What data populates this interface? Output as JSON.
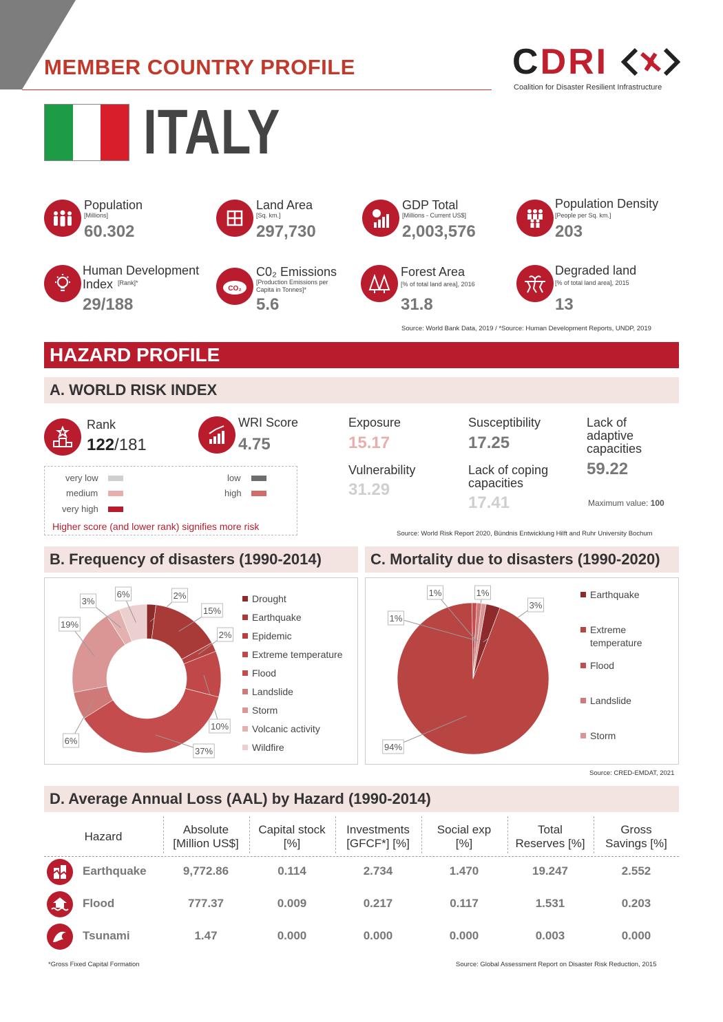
{
  "header": {
    "title": "MEMBER COUNTRY PROFILE",
    "logo_text_c": "C",
    "logo_text_dri": "DRI",
    "logo_sub": "Coalition for Disaster Resilient Infrastructure",
    "country": "ITALY"
  },
  "flag": {
    "colors": [
      "#1e9b46",
      "#ffffff",
      "#d81e2a"
    ]
  },
  "stats": [
    {
      "label": "Population",
      "sub": "[Millions]",
      "value": "60.302",
      "icon": "people-icon"
    },
    {
      "label": "Land Area",
      "sub": "[Sq. km.]",
      "value": "297,730",
      "icon": "land-icon"
    },
    {
      "label": "GDP Total",
      "sub": "[Millions - Current US$]",
      "value": "2,003,576",
      "icon": "gdp-icon"
    },
    {
      "label": "Population Density",
      "sub": "[People per Sq. km.]",
      "value": "203",
      "icon": "density-icon"
    },
    {
      "label": "Human Development Index",
      "sub": "[Rank]*",
      "value": "29/188",
      "icon": "bulb-icon"
    },
    {
      "label": "C0₂ Emissions",
      "sub": "[Production Emissions per Capita in Tonnes]*",
      "value": "5.6",
      "icon": "co2-icon"
    },
    {
      "label": "Forest Area",
      "sub": "[% of total land area], 2016",
      "value": "31.8",
      "icon": "forest-icon"
    },
    {
      "label": "Degraded land",
      "sub": "[% of total land area], 2015",
      "value": "13",
      "icon": "degraded-icon"
    }
  ],
  "stats_source": "Source: World Bank Data, 2019 / *Source: Human Development Reports, UNDP, 2019",
  "hazard_title": "HAZARD PROFILE",
  "wri": {
    "title": "A. WORLD RISK INDEX",
    "rank_label": "Rank",
    "rank_value": "122",
    "rank_total": "/181",
    "score_label": "WRI Score",
    "score_value": "4.75",
    "exposure_label": "Exposure",
    "exposure_value": "15.17",
    "susceptibility_label": "Susceptibility",
    "susceptibility_value": "17.25",
    "adaptive_label": "Lack of adaptive capacities",
    "adaptive_value": "59.22",
    "vulnerability_label": "Vulnerability",
    "vulnerability_value": "31.29",
    "coping_label": "Lack of coping capacities",
    "coping_value": "17.41",
    "max_label": "Maximum value:",
    "max_value": "100",
    "legend": {
      "very_low": "very low",
      "low": "low",
      "medium": "medium",
      "high": "high",
      "very_high": "very high"
    },
    "legend_colors": {
      "very_low": "#cfcfcf",
      "low": "#6d6d70",
      "medium": "#e8aeac",
      "high": "#d26a6b",
      "very_high": "#b71c2e"
    },
    "note": "Higher score (and lower rank) signifies more risk",
    "source": "Source: World Risk Report 2020, Bündnis Entwicklung Hilft and Ruhr University Bochum"
  },
  "freq": {
    "title": "B.  Frequency of disasters (1990-2014)"
  },
  "mort": {
    "title": "C.  Mortality due to disasters (1990-2020)"
  },
  "charts_source": "Source: CRED-EMDAT, 2021",
  "chart_data": [
    {
      "type": "pie",
      "title": "B.  Frequency of disasters (1990-2014)",
      "categories": [
        "Drought",
        "Earthquake",
        "Epidemic",
        "Extreme temperature",
        "Flood",
        "Landslide",
        "Storm",
        "Volcanic activity",
        "Wildfire"
      ],
      "values": [
        2,
        15,
        2,
        10,
        37,
        6,
        19,
        3,
        6
      ],
      "labels": [
        "2%",
        "15%",
        "2%",
        "10%",
        "37%",
        "6%",
        "19%",
        "3%",
        "6%"
      ],
      "colors": [
        "#8d2a2c",
        "#a83a38",
        "#b44040",
        "#c04848",
        "#c44c4c",
        "#cf7a78",
        "#d99694",
        "#e2b1b0",
        "#ecd0d0"
      ]
    },
    {
      "type": "pie",
      "title": "C.  Mortality due to disasters (1990-2020)",
      "categories": [
        "Earthquake",
        "Extreme temperature",
        "Flood",
        "Landslide",
        "Storm"
      ],
      "values": [
        3,
        94,
        1,
        1,
        1
      ],
      "labels": [
        "3%",
        "94%",
        "1%",
        "1%",
        "1%"
      ],
      "colors": [
        "#8d2a2c",
        "#b94543",
        "#c44c4c",
        "#cf7a78",
        "#d99694"
      ]
    }
  ],
  "aal": {
    "title": "D.  Average Annual Loss (AAL) by Hazard (1990-2014)",
    "headers": [
      "Hazard",
      "Absolute [Million US$]",
      "Capital stock [%]",
      "Investments [GFCF*] [%]",
      "Social exp [%]",
      "Total Reserves [%]",
      "Gross Savings [%]"
    ],
    "rows": [
      {
        "hazard": "Earthquake",
        "icon": "earthquake-icon",
        "values": [
          "9,772.86",
          "0.114",
          "2.734",
          "1.470",
          "19.247",
          "2.552"
        ]
      },
      {
        "hazard": "Flood",
        "icon": "flood-icon",
        "values": [
          "777.37",
          "0.009",
          "0.217",
          "0.117",
          "1.531",
          "0.203"
        ]
      },
      {
        "hazard": "Tsunami",
        "icon": "tsunami-icon",
        "values": [
          "1.47",
          "0.000",
          "0.000",
          "0.000",
          "0.003",
          "0.000"
        ]
      }
    ],
    "footnote": "*Gross Fixed Capital Formation",
    "source": "Source: Global Assessment Report on Disaster Risk Reduction, 2015"
  }
}
